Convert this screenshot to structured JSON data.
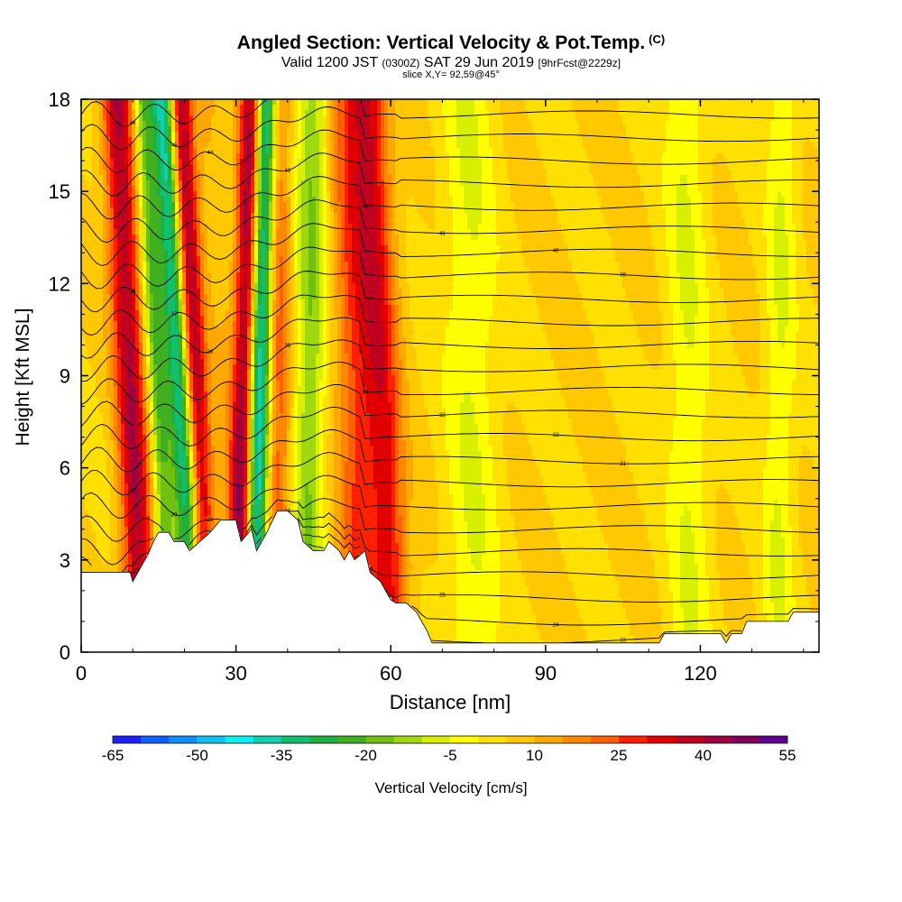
{
  "header": {
    "title": "Angled Section: Vertical Velocity & Pot.Temp.",
    "title_tag": "(C)",
    "subtitle_valid": "Valid 1200 JST",
    "subtitle_utc": "(0300Z)",
    "subtitle_date": "SAT 29 Jun 2019",
    "subtitle_fcst": "[9hrFcst@2229z]",
    "slice": "slice X,Y= 92,59@45°"
  },
  "chart_data": {
    "type": "heatmap",
    "title": "Angled Section: Vertical Velocity & Pot.Temp.",
    "xlabel": "Distance [nm]",
    "ylabel": "Height [Kft MSL]",
    "xlim": [
      0,
      143
    ],
    "ylim": [
      0,
      18
    ],
    "x_ticks": [
      {
        "value": 0,
        "label": "0"
      },
      {
        "value": 30,
        "label": "30"
      },
      {
        "value": 60,
        "label": "60"
      },
      {
        "value": 90,
        "label": "90"
      },
      {
        "value": 120,
        "label": "120"
      }
    ],
    "y_ticks": [
      {
        "value": 0,
        "label": "0"
      },
      {
        "value": 3,
        "label": "3"
      },
      {
        "value": 6,
        "label": "6"
      },
      {
        "value": 9,
        "label": "9"
      },
      {
        "value": 12,
        "label": "12"
      },
      {
        "value": 15,
        "label": "15"
      },
      {
        "value": 18,
        "label": "18"
      }
    ],
    "colorbar": {
      "label": "Vertical Velocity [cm/s]",
      "colors": [
        "#1f1fff",
        "#1060ff",
        "#1090ff",
        "#10c0f0",
        "#10f0f0",
        "#10d0b0",
        "#10c070",
        "#20b040",
        "#40b020",
        "#70c010",
        "#a0d810",
        "#d8f000",
        "#ffff00",
        "#ffe000",
        "#ffc800",
        "#ffa800",
        "#ff8800",
        "#ff6000",
        "#ff2000",
        "#e00000",
        "#c00020",
        "#a00040",
        "#800060",
        "#600090"
      ],
      "tick_labels": [
        "-65",
        "-50",
        "-35",
        "-20",
        "-5",
        "10",
        "25",
        "40",
        "55"
      ],
      "tick_values": [
        -65,
        -50,
        -35,
        -20,
        -5,
        10,
        25,
        40,
        55
      ]
    },
    "terrain": [
      {
        "x": 0,
        "h": 2.6
      },
      {
        "x": 9.5,
        "h": 2.6
      },
      {
        "x": 10,
        "h": 2.3
      },
      {
        "x": 11,
        "h": 2.6
      },
      {
        "x": 13,
        "h": 3.2
      },
      {
        "x": 14,
        "h": 3.6
      },
      {
        "x": 15,
        "h": 3.9
      },
      {
        "x": 17,
        "h": 3.9
      },
      {
        "x": 18,
        "h": 3.6
      },
      {
        "x": 20,
        "h": 3.6
      },
      {
        "x": 21,
        "h": 3.3
      },
      {
        "x": 23,
        "h": 3.6
      },
      {
        "x": 25,
        "h": 3.9
      },
      {
        "x": 27,
        "h": 4.3
      },
      {
        "x": 30,
        "h": 4.3
      },
      {
        "x": 31,
        "h": 3.6
      },
      {
        "x": 33,
        "h": 4.0
      },
      {
        "x": 34,
        "h": 3.3
      },
      {
        "x": 36,
        "h": 3.9
      },
      {
        "x": 38,
        "h": 4.6
      },
      {
        "x": 40,
        "h": 4.6
      },
      {
        "x": 42,
        "h": 4.3
      },
      {
        "x": 43,
        "h": 3.6
      },
      {
        "x": 45,
        "h": 3.3
      },
      {
        "x": 47,
        "h": 3.3
      },
      {
        "x": 48,
        "h": 3.6
      },
      {
        "x": 50,
        "h": 3.3
      },
      {
        "x": 51,
        "h": 3.0
      },
      {
        "x": 52,
        "h": 3.3
      },
      {
        "x": 53,
        "h": 3.0
      },
      {
        "x": 55,
        "h": 3.3
      },
      {
        "x": 56,
        "h": 2.6
      },
      {
        "x": 58,
        "h": 2.3
      },
      {
        "x": 59,
        "h": 2.0
      },
      {
        "x": 60,
        "h": 1.7
      },
      {
        "x": 61,
        "h": 1.6
      },
      {
        "x": 63,
        "h": 1.6
      },
      {
        "x": 65,
        "h": 1.3
      },
      {
        "x": 66,
        "h": 1.0
      },
      {
        "x": 67,
        "h": 0.7
      },
      {
        "x": 68,
        "h": 0.3
      },
      {
        "x": 112,
        "h": 0.3
      },
      {
        "x": 113,
        "h": 0.6
      },
      {
        "x": 124,
        "h": 0.6
      },
      {
        "x": 125,
        "h": 0.3
      },
      {
        "x": 126,
        "h": 0.6
      },
      {
        "x": 128,
        "h": 0.6
      },
      {
        "x": 129,
        "h": 1.0
      },
      {
        "x": 137,
        "h": 1.0
      },
      {
        "x": 138,
        "h": 1.3
      },
      {
        "x": 143,
        "h": 1.3
      }
    ],
    "vertical_velocity_features": [
      {
        "x_top": 7,
        "x_bot": 11,
        "w": 3,
        "value": 40,
        "note": "updraft"
      },
      {
        "x_top": 12,
        "x_bot": 16,
        "w": 2,
        "value": -20
      },
      {
        "x_top": 16,
        "x_bot": 21,
        "w": 2.5,
        "value": -45
      },
      {
        "x_top": 19,
        "x_bot": 23,
        "w": 2.5,
        "value": 50
      },
      {
        "x_top": 24,
        "x_bot": 30,
        "w": 2.5,
        "value": 10
      },
      {
        "x_top": 33,
        "x_bot": 31,
        "w": 2.2,
        "value": 45
      },
      {
        "x_top": 36,
        "x_bot": 34,
        "w": 2.2,
        "value": -45
      },
      {
        "x_top": 38,
        "x_bot": 38,
        "w": 2.5,
        "value": 25
      },
      {
        "x_top": 45,
        "x_bot": 44,
        "w": 3,
        "value": -15
      },
      {
        "x_top": 52,
        "x_bot": 54,
        "w": 4,
        "value": 25
      },
      {
        "x_top": 56,
        "x_bot": 60,
        "w": 3.5,
        "value": 30
      },
      {
        "x_top": 75,
        "x_bot": 76,
        "w": 5,
        "value": -5
      },
      {
        "x_top": 117,
        "x_bot": 118,
        "w": 4,
        "value": -5
      },
      {
        "x_top": 136,
        "x_bot": 135,
        "w": 3,
        "value": -5
      }
    ],
    "isentropes": {
      "count": 24,
      "top_height": 17.5,
      "spacing_kft": 0.75,
      "label_x": [
        10,
        18,
        25,
        40,
        55,
        70,
        92,
        105
      ],
      "labels": [
        "46",
        "45",
        "44",
        "43",
        "42",
        "41",
        "40",
        "39",
        "38",
        "37",
        "36",
        "35",
        "34",
        "33",
        "32",
        "31",
        "30",
        "29",
        "28",
        "27",
        "26",
        "25",
        "24",
        "23"
      ]
    }
  }
}
